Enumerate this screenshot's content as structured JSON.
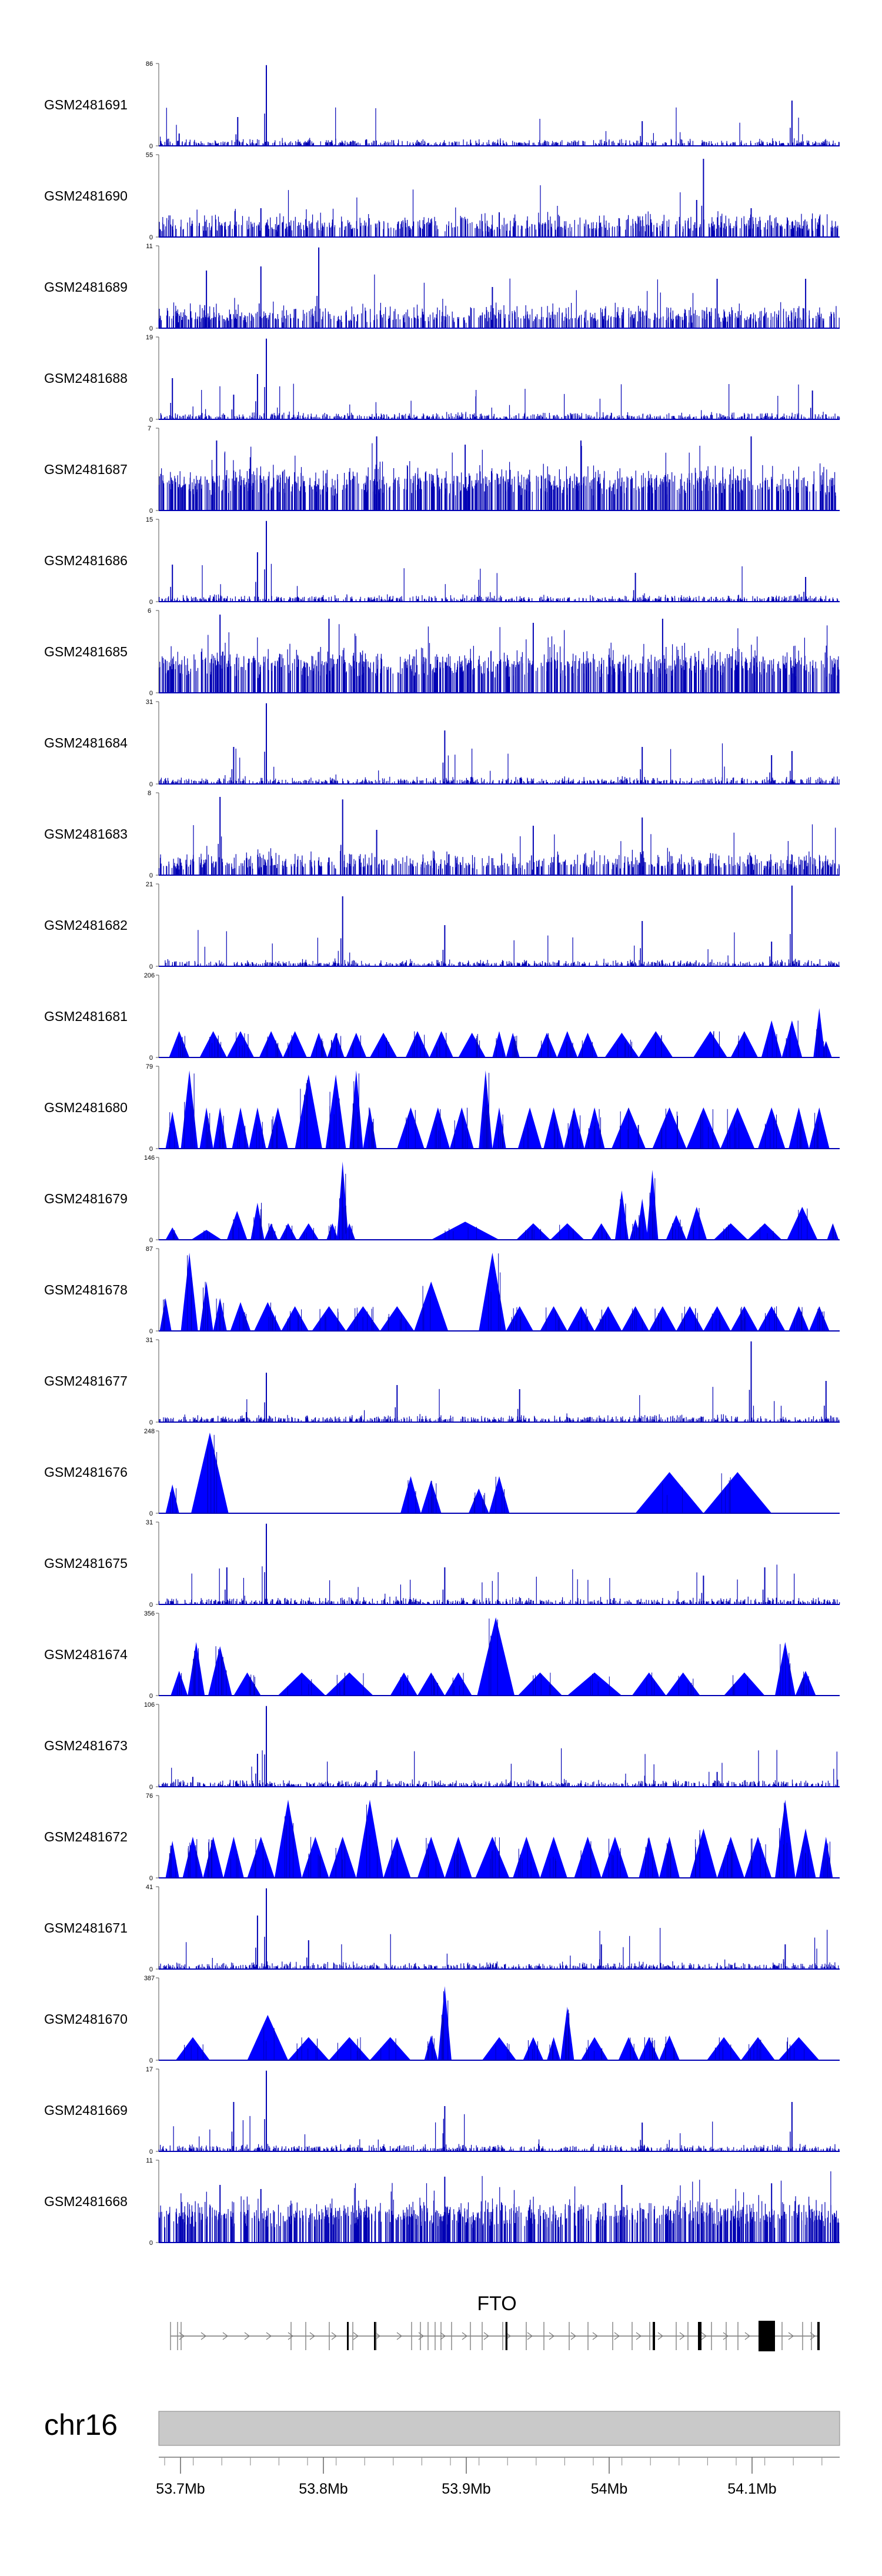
{
  "chart_data": {
    "type": "area",
    "title": "",
    "track_color": "#0000b4",
    "track_color_bright": "#0000ff",
    "tracks": [
      {
        "name": "GSM2481691",
        "ymax": 86,
        "style": "sparse",
        "peaks": [
          [
            0.158,
            0.98
          ],
          [
            0.116,
            0.35
          ],
          [
            0.71,
            0.3
          ],
          [
            0.93,
            0.55
          ],
          [
            0.03,
            0.15
          ]
        ]
      },
      {
        "name": "GSM2481690",
        "ymax": 55,
        "style": "dense",
        "peaks": [
          [
            0.8,
            0.95
          ],
          [
            0.79,
            0.45
          ],
          [
            0.15,
            0.35
          ],
          [
            0.5,
            0.3
          ],
          [
            0.87,
            0.35
          ]
        ]
      },
      {
        "name": "GSM2481689",
        "ymax": 11,
        "style": "dense",
        "peaks": [
          [
            0.235,
            0.98
          ],
          [
            0.15,
            0.75
          ],
          [
            0.07,
            0.7
          ],
          [
            0.82,
            0.6
          ],
          [
            0.49,
            0.5
          ],
          [
            0.95,
            0.6
          ]
        ]
      },
      {
        "name": "GSM2481688",
        "ymax": 19,
        "style": "sparse",
        "peaks": [
          [
            0.158,
            0.98
          ],
          [
            0.02,
            0.5
          ],
          [
            0.11,
            0.3
          ],
          [
            0.145,
            0.55
          ],
          [
            0.96,
            0.35
          ]
        ]
      },
      {
        "name": "GSM2481687",
        "ymax": 7,
        "style": "verydense",
        "peaks": [
          [
            0.085,
            0.85
          ],
          [
            0.32,
            0.9
          ],
          [
            0.45,
            0.8
          ],
          [
            0.62,
            0.85
          ],
          [
            0.87,
            0.9
          ]
        ]
      },
      {
        "name": "GSM2481686",
        "ymax": 15,
        "style": "sparse",
        "peaks": [
          [
            0.158,
            0.98
          ],
          [
            0.145,
            0.6
          ],
          [
            0.02,
            0.45
          ],
          [
            0.7,
            0.35
          ],
          [
            0.95,
            0.3
          ]
        ]
      },
      {
        "name": "GSM2481685",
        "ymax": 6,
        "style": "verydense",
        "peaks": [
          [
            0.09,
            0.95
          ],
          [
            0.25,
            0.9
          ],
          [
            0.55,
            0.85
          ],
          [
            0.74,
            0.9
          ]
        ]
      },
      {
        "name": "GSM2481684",
        "ymax": 31,
        "style": "sparse",
        "peaks": [
          [
            0.158,
            0.98
          ],
          [
            0.11,
            0.45
          ],
          [
            0.42,
            0.65
          ],
          [
            0.71,
            0.45
          ],
          [
            0.9,
            0.35
          ],
          [
            0.93,
            0.4
          ]
        ]
      },
      {
        "name": "GSM2481683",
        "ymax": 8,
        "style": "dense",
        "peaks": [
          [
            0.09,
            0.95
          ],
          [
            0.27,
            0.92
          ],
          [
            0.71,
            0.7
          ],
          [
            0.32,
            0.55
          ],
          [
            0.55,
            0.6
          ]
        ]
      },
      {
        "name": "GSM2481682",
        "ymax": 21,
        "style": "sparse",
        "peaks": [
          [
            0.93,
            0.98
          ],
          [
            0.27,
            0.85
          ],
          [
            0.42,
            0.5
          ],
          [
            0.71,
            0.55
          ],
          [
            0.9,
            0.3
          ]
        ]
      },
      {
        "name": "GSM2481681",
        "ymax": 206,
        "style": "triangles"
      },
      {
        "name": "GSM2481680",
        "ymax": 79,
        "style": "triangles"
      },
      {
        "name": "GSM2481679",
        "ymax": 146,
        "style": "triangles"
      },
      {
        "name": "GSM2481678",
        "ymax": 87,
        "style": "triangles"
      },
      {
        "name": "GSM2481677",
        "ymax": 31,
        "style": "sparse",
        "peaks": [
          [
            0.87,
            0.98
          ],
          [
            0.158,
            0.6
          ],
          [
            0.35,
            0.45
          ],
          [
            0.53,
            0.4
          ],
          [
            0.98,
            0.5
          ]
        ]
      },
      {
        "name": "GSM2481676",
        "ymax": 248,
        "style": "triangles"
      },
      {
        "name": "GSM2481675",
        "ymax": 31,
        "style": "sparse",
        "peaks": [
          [
            0.158,
            0.98
          ],
          [
            0.1,
            0.45
          ],
          [
            0.42,
            0.45
          ],
          [
            0.89,
            0.45
          ],
          [
            0.8,
            0.35
          ]
        ]
      },
      {
        "name": "GSM2481674",
        "ymax": 356,
        "style": "triangles"
      },
      {
        "name": "GSM2481673",
        "ymax": 106,
        "style": "sparse",
        "peaks": [
          [
            0.158,
            0.98
          ],
          [
            0.145,
            0.4
          ],
          [
            0.32,
            0.2
          ],
          [
            0.82,
            0.18
          ],
          [
            0.05,
            0.12
          ]
        ]
      },
      {
        "name": "GSM2481672",
        "ymax": 76,
        "style": "triangles"
      },
      {
        "name": "GSM2481671",
        "ymax": 41,
        "style": "sparse",
        "peaks": [
          [
            0.158,
            0.98
          ],
          [
            0.145,
            0.65
          ],
          [
            0.22,
            0.35
          ],
          [
            0.65,
            0.3
          ],
          [
            0.92,
            0.3
          ]
        ]
      },
      {
        "name": "GSM2481670",
        "ymax": 387,
        "style": "triangles"
      },
      {
        "name": "GSM2481669",
        "ymax": 17,
        "style": "sparse",
        "peaks": [
          [
            0.158,
            0.98
          ],
          [
            0.11,
            0.6
          ],
          [
            0.42,
            0.55
          ],
          [
            0.93,
            0.6
          ],
          [
            0.71,
            0.35
          ]
        ]
      },
      {
        "name": "GSM2481668",
        "ymax": 11,
        "style": "verydense",
        "peaks": [
          [
            0.09,
            0.7
          ],
          [
            0.15,
            0.65
          ],
          [
            0.42,
            0.8
          ],
          [
            0.68,
            0.7
          ],
          [
            0.9,
            0.72
          ]
        ]
      }
    ],
    "triangle_tracks": {
      "GSM2481681": [
        [
          0.03,
          0.32
        ],
        [
          0.08,
          0.32
        ],
        [
          0.12,
          0.32
        ],
        [
          0.165,
          0.32
        ],
        [
          0.2,
          0.32
        ],
        [
          0.235,
          0.3
        ],
        [
          0.26,
          0.3
        ],
        [
          0.29,
          0.3
        ],
        [
          0.33,
          0.3
        ],
        [
          0.38,
          0.32
        ],
        [
          0.415,
          0.32
        ],
        [
          0.46,
          0.3
        ],
        [
          0.5,
          0.32
        ],
        [
          0.52,
          0.3
        ],
        [
          0.57,
          0.3
        ],
        [
          0.6,
          0.32
        ],
        [
          0.63,
          0.3
        ],
        [
          0.68,
          0.3
        ],
        [
          0.73,
          0.32
        ],
        [
          0.81,
          0.32
        ],
        [
          0.86,
          0.32
        ],
        [
          0.9,
          0.45
        ],
        [
          0.93,
          0.45
        ],
        [
          0.97,
          0.6
        ],
        [
          0.98,
          0.2
        ]
      ],
      "GSM2481680": [
        [
          0.02,
          0.45
        ],
        [
          0.045,
          0.95
        ],
        [
          0.07,
          0.5
        ],
        [
          0.09,
          0.5
        ],
        [
          0.12,
          0.5
        ],
        [
          0.145,
          0.5
        ],
        [
          0.175,
          0.5
        ],
        [
          0.22,
          0.9
        ],
        [
          0.26,
          0.9
        ],
        [
          0.29,
          0.95
        ],
        [
          0.31,
          0.5
        ],
        [
          0.37,
          0.5
        ],
        [
          0.41,
          0.5
        ],
        [
          0.445,
          0.5
        ],
        [
          0.48,
          0.95
        ],
        [
          0.5,
          0.5
        ],
        [
          0.545,
          0.5
        ],
        [
          0.58,
          0.5
        ],
        [
          0.61,
          0.5
        ],
        [
          0.64,
          0.5
        ],
        [
          0.69,
          0.5
        ],
        [
          0.75,
          0.5
        ],
        [
          0.8,
          0.5
        ],
        [
          0.85,
          0.5
        ],
        [
          0.9,
          0.5
        ],
        [
          0.94,
          0.5
        ],
        [
          0.97,
          0.5
        ]
      ],
      "GSM2481679": [
        [
          0.02,
          0.15
        ],
        [
          0.07,
          0.12
        ],
        [
          0.115,
          0.35
        ],
        [
          0.145,
          0.45
        ],
        [
          0.165,
          0.2
        ],
        [
          0.19,
          0.2
        ],
        [
          0.22,
          0.2
        ],
        [
          0.255,
          0.2
        ],
        [
          0.27,
          0.95
        ],
        [
          0.28,
          0.2
        ],
        [
          0.45,
          0.22
        ],
        [
          0.55,
          0.2
        ],
        [
          0.6,
          0.2
        ],
        [
          0.65,
          0.2
        ],
        [
          0.68,
          0.6
        ],
        [
          0.7,
          0.25
        ],
        [
          0.71,
          0.5
        ],
        [
          0.725,
          0.85
        ],
        [
          0.76,
          0.3
        ],
        [
          0.79,
          0.4
        ],
        [
          0.84,
          0.2
        ],
        [
          0.89,
          0.2
        ],
        [
          0.945,
          0.4
        ],
        [
          0.99,
          0.2
        ]
      ],
      "GSM2481678": [
        [
          0.01,
          0.4
        ],
        [
          0.045,
          0.95
        ],
        [
          0.07,
          0.6
        ],
        [
          0.09,
          0.4
        ],
        [
          0.12,
          0.35
        ],
        [
          0.16,
          0.35
        ],
        [
          0.2,
          0.3
        ],
        [
          0.25,
          0.3
        ],
        [
          0.3,
          0.3
        ],
        [
          0.35,
          0.3
        ],
        [
          0.4,
          0.6
        ],
        [
          0.49,
          0.95
        ],
        [
          0.53,
          0.3
        ],
        [
          0.58,
          0.3
        ],
        [
          0.62,
          0.3
        ],
        [
          0.66,
          0.3
        ],
        [
          0.7,
          0.3
        ],
        [
          0.74,
          0.3
        ],
        [
          0.78,
          0.3
        ],
        [
          0.82,
          0.3
        ],
        [
          0.86,
          0.3
        ],
        [
          0.9,
          0.3
        ],
        [
          0.94,
          0.3
        ],
        [
          0.97,
          0.3
        ]
      ],
      "GSM2481676": [
        [
          0.02,
          0.35
        ],
        [
          0.075,
          0.98
        ],
        [
          0.37,
          0.45
        ],
        [
          0.4,
          0.4
        ],
        [
          0.47,
          0.3
        ],
        [
          0.5,
          0.45
        ],
        [
          0.75,
          0.5
        ],
        [
          0.85,
          0.5
        ]
      ],
      "GSM2481674": [
        [
          0.03,
          0.3
        ],
        [
          0.055,
          0.65
        ],
        [
          0.09,
          0.6
        ],
        [
          0.13,
          0.28
        ],
        [
          0.21,
          0.28
        ],
        [
          0.28,
          0.28
        ],
        [
          0.36,
          0.28
        ],
        [
          0.4,
          0.28
        ],
        [
          0.44,
          0.28
        ],
        [
          0.495,
          0.95
        ],
        [
          0.56,
          0.28
        ],
        [
          0.64,
          0.28
        ],
        [
          0.72,
          0.28
        ],
        [
          0.77,
          0.28
        ],
        [
          0.86,
          0.28
        ],
        [
          0.92,
          0.65
        ],
        [
          0.95,
          0.3
        ]
      ],
      "GSM2481672": [
        [
          0.02,
          0.45
        ],
        [
          0.05,
          0.5
        ],
        [
          0.08,
          0.5
        ],
        [
          0.11,
          0.5
        ],
        [
          0.15,
          0.5
        ],
        [
          0.19,
          0.95
        ],
        [
          0.23,
          0.5
        ],
        [
          0.27,
          0.5
        ],
        [
          0.31,
          0.95
        ],
        [
          0.35,
          0.5
        ],
        [
          0.4,
          0.5
        ],
        [
          0.44,
          0.5
        ],
        [
          0.49,
          0.5
        ],
        [
          0.54,
          0.5
        ],
        [
          0.58,
          0.5
        ],
        [
          0.63,
          0.5
        ],
        [
          0.67,
          0.5
        ],
        [
          0.72,
          0.5
        ],
        [
          0.75,
          0.5
        ],
        [
          0.8,
          0.6
        ],
        [
          0.84,
          0.5
        ],
        [
          0.88,
          0.5
        ],
        [
          0.92,
          0.95
        ],
        [
          0.95,
          0.6
        ],
        [
          0.98,
          0.5
        ]
      ],
      "GSM2481670": [
        [
          0.05,
          0.28
        ],
        [
          0.16,
          0.55
        ],
        [
          0.22,
          0.28
        ],
        [
          0.28,
          0.28
        ],
        [
          0.34,
          0.28
        ],
        [
          0.4,
          0.3
        ],
        [
          0.42,
          0.9
        ],
        [
          0.5,
          0.28
        ],
        [
          0.55,
          0.28
        ],
        [
          0.58,
          0.28
        ],
        [
          0.6,
          0.65
        ],
        [
          0.64,
          0.28
        ],
        [
          0.69,
          0.28
        ],
        [
          0.72,
          0.28
        ],
        [
          0.75,
          0.3
        ],
        [
          0.83,
          0.28
        ],
        [
          0.88,
          0.28
        ],
        [
          0.94,
          0.28
        ]
      ]
    },
    "gene": {
      "name": "FTO"
    },
    "chromosome": "chr16",
    "x_ticks": [
      "53.7Mb",
      "53.8Mb",
      "53.9Mb",
      "54Mb",
      "54.1Mb"
    ],
    "y_min_label": "0"
  }
}
